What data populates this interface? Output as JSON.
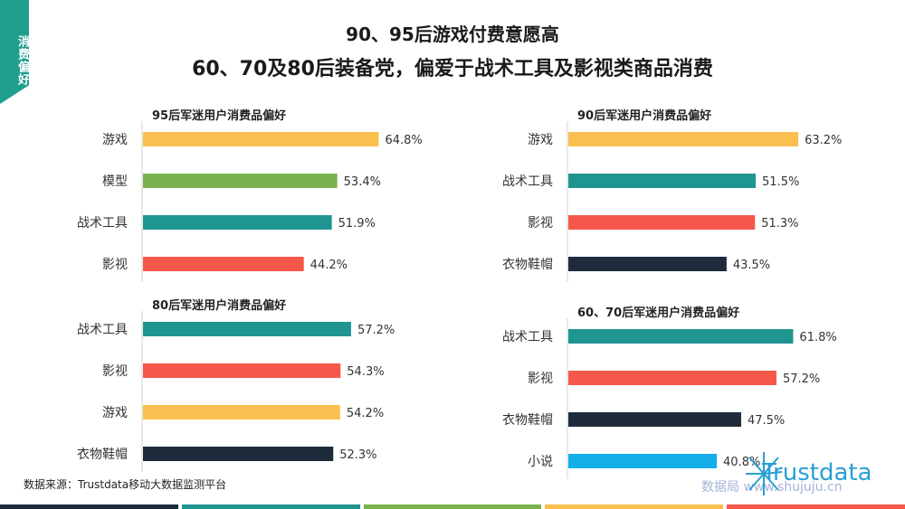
{
  "tag": "消费偏好",
  "title_line1": "90、95后游戏付费意愿高",
  "title_line2": "60、70及80后装备党，偏爱于战术工具及影视类商品消费",
  "source": "数据来源：Trustdata移动大数据监测平台",
  "watermark": "数据局 www.shujuju.cn",
  "logo_text": "Trustdata",
  "colors": {
    "游戏": "#f9c04f",
    "模型": "#7ab34d",
    "战术工具": "#1f9590",
    "影视": "#f5574a",
    "衣物鞋帽": "#1d2b3a",
    "小说": "#14aee8",
    "accent": "#1f9e8e"
  },
  "footer_colors": [
    "#1d2b3a",
    "#1f9590",
    "#7ab34d",
    "#f9c04f",
    "#f5574a"
  ],
  "chart_data": [
    {
      "type": "bar",
      "title": "95后军迷用户消费品偏好",
      "categories": [
        "游戏",
        "模型",
        "战术工具",
        "影视"
      ],
      "values": [
        64.8,
        53.4,
        51.9,
        44.2
      ],
      "labels": [
        "64.8%",
        "53.4%",
        "51.9%",
        "44.2%"
      ],
      "xlim": [
        0,
        100
      ]
    },
    {
      "type": "bar",
      "title": "90后军迷用户消费品偏好",
      "categories": [
        "游戏",
        "战术工具",
        "影视",
        "衣物鞋帽"
      ],
      "values": [
        63.2,
        51.5,
        51.3,
        43.5
      ],
      "labels": [
        "63.2%",
        "51.5%",
        "51.3%",
        "43.5%"
      ],
      "xlim": [
        0,
        100
      ]
    },
    {
      "type": "bar",
      "title": "80后军迷用户消费品偏好",
      "categories": [
        "战术工具",
        "影视",
        "游戏",
        "衣物鞋帽"
      ],
      "values": [
        57.2,
        54.3,
        54.2,
        52.3
      ],
      "labels": [
        "57.2%",
        "54.3%",
        "54.2%",
        "52.3%"
      ],
      "xlim": [
        0,
        100
      ]
    },
    {
      "type": "bar",
      "title": "60、70后军迷用户消费品偏好",
      "categories": [
        "战术工具",
        "影视",
        "衣物鞋帽",
        "小说"
      ],
      "values": [
        61.8,
        57.2,
        47.5,
        40.8
      ],
      "labels": [
        "61.8%",
        "57.2%",
        "47.5%",
        "40.8%"
      ],
      "xlim": [
        0,
        100
      ]
    }
  ]
}
